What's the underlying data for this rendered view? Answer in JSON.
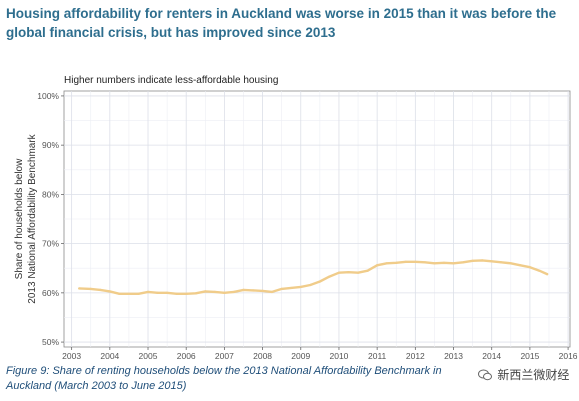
{
  "header": {
    "title": "Housing affordability for renters in Auckland was worse in 2015 than it was before the global financial crisis, but has improved since 2013"
  },
  "caption": {
    "text": "Figure 9: Share of renting households below the 2013 National Affordability Benchmark in Auckland (March 2003 to June 2015)"
  },
  "watermark": {
    "text": "新西兰微财经"
  },
  "chart_data": {
    "type": "line",
    "subtitle": "Higher numbers indicate less-affordable housing",
    "ylabel_line1": "Share of households below",
    "ylabel_line2": "2013 National Affordability Benchmark",
    "xlim": [
      2002.8,
      2016.05
    ],
    "ylim": [
      49,
      101
    ],
    "x_ticks": [
      2003,
      2004,
      2005,
      2006,
      2007,
      2008,
      2009,
      2010,
      2011,
      2012,
      2013,
      2014,
      2015,
      2016
    ],
    "y_ticks": [
      50,
      60,
      70,
      80,
      90,
      100
    ],
    "y_tick_labels": [
      "50%",
      "60%",
      "70%",
      "80%",
      "90%",
      "100%"
    ],
    "grid": true,
    "line_color": "#f0cc8a",
    "series": [
      {
        "x": [
          2003.2,
          2003.5,
          2003.75,
          2004.0,
          2004.25,
          2004.5,
          2004.75,
          2005.0,
          2005.25,
          2005.5,
          2005.75,
          2006.0,
          2006.25,
          2006.5,
          2006.75,
          2007.0,
          2007.25,
          2007.5,
          2007.75,
          2008.0,
          2008.25,
          2008.5,
          2008.75,
          2009.0,
          2009.25,
          2009.5,
          2009.75,
          2010.0,
          2010.25,
          2010.5,
          2010.75,
          2011.0,
          2011.25,
          2011.5,
          2011.75,
          2012.0,
          2012.25,
          2012.5,
          2012.75,
          2013.0,
          2013.25,
          2013.5,
          2013.75,
          2014.0,
          2014.25,
          2014.5,
          2014.75,
          2015.0,
          2015.25,
          2015.45
        ],
        "values": [
          60.9,
          60.8,
          60.6,
          60.3,
          59.8,
          59.8,
          59.8,
          60.2,
          60.0,
          60.0,
          59.8,
          59.8,
          59.9,
          60.3,
          60.2,
          60.0,
          60.2,
          60.6,
          60.5,
          60.4,
          60.2,
          60.8,
          61.0,
          61.2,
          61.6,
          62.3,
          63.3,
          64.1,
          64.2,
          64.1,
          64.5,
          65.6,
          66.0,
          66.1,
          66.3,
          66.3,
          66.2,
          66.0,
          66.1,
          66.0,
          66.2,
          66.5,
          66.6,
          66.4,
          66.2,
          66.0,
          65.6,
          65.2,
          64.5,
          63.8
        ]
      }
    ]
  }
}
